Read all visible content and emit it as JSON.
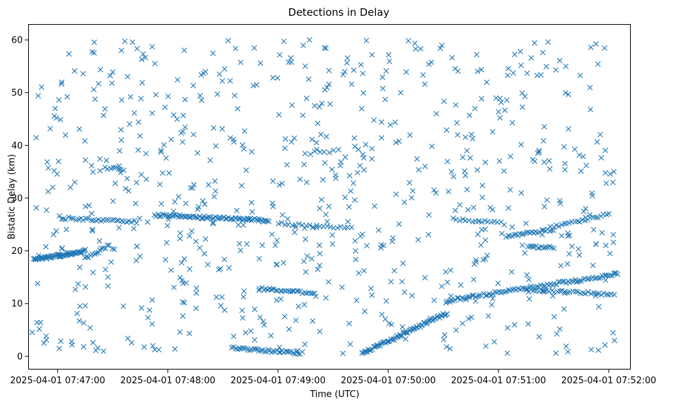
{
  "chart_data": {
    "type": "scatter",
    "title": "Detections in Delay",
    "xlabel": "Time (UTC)",
    "ylabel": "Bistatic Delay (km)",
    "marker": "x",
    "color": "#1f77b4",
    "grid": false,
    "x_unit": "seconds after 2025-04-01 07:47:00",
    "xlim": [
      -16,
      312
    ],
    "ylim": [
      -2.5,
      63
    ],
    "x_ticks": [
      {
        "value": 0,
        "label": "2025-04-01 07:47:00"
      },
      {
        "value": 60,
        "label": "2025-04-01 07:48:00"
      },
      {
        "value": 120,
        "label": "2025-04-01 07:49:00"
      },
      {
        "value": 180,
        "label": "2025-04-01 07:50:00"
      },
      {
        "value": 240,
        "label": "2025-04-01 07:51:00"
      },
      {
        "value": 300,
        "label": "2025-04-01 07:52:00"
      }
    ],
    "y_ticks": [
      {
        "value": 0,
        "label": "0"
      },
      {
        "value": 10,
        "label": "10"
      },
      {
        "value": 20,
        "label": "20"
      },
      {
        "value": 30,
        "label": "30"
      },
      {
        "value": 40,
        "label": "40"
      },
      {
        "value": 50,
        "label": "50"
      },
      {
        "value": 60,
        "label": "60"
      }
    ],
    "tracks": [
      {
        "t0": -13,
        "t1": 15,
        "y0": 18.3,
        "y1": 20.0,
        "n": 60
      },
      {
        "t0": 15,
        "t1": 28,
        "y0": 18.5,
        "y1": 21.0,
        "n": 14
      },
      {
        "t0": 3,
        "t1": 43,
        "y0": 26.2,
        "y1": 25.5,
        "n": 30
      },
      {
        "t0": 53,
        "t1": 115,
        "y0": 26.8,
        "y1": 25.8,
        "n": 75
      },
      {
        "t0": 95,
        "t1": 133,
        "y0": 1.6,
        "y1": 0.6,
        "n": 40
      },
      {
        "t0": 110,
        "t1": 140,
        "y0": 12.8,
        "y1": 12.0,
        "n": 28
      },
      {
        "t0": 120,
        "t1": 160,
        "y0": 25.2,
        "y1": 24.2,
        "n": 22
      },
      {
        "t0": 166,
        "t1": 212,
        "y0": 0.6,
        "y1": 8.2,
        "n": 70
      },
      {
        "t0": 212,
        "t1": 305,
        "y0": 10.6,
        "y1": 15.6,
        "n": 90
      },
      {
        "t0": 244,
        "t1": 270,
        "y0": 22.8,
        "y1": 24.0,
        "n": 25
      },
      {
        "t0": 255,
        "t1": 303,
        "y0": 12.5,
        "y1": 11.8,
        "n": 35
      },
      {
        "t0": 270,
        "t1": 300,
        "y0": 24.5,
        "y1": 27.0,
        "n": 22
      },
      {
        "t0": 256,
        "t1": 270,
        "y0": 20.8,
        "y1": 20.6,
        "n": 14
      },
      {
        "t0": 26,
        "t1": 36,
        "y0": 35.8,
        "y1": 35.5,
        "n": 8
      },
      {
        "t0": 217,
        "t1": 243,
        "y0": 26.0,
        "y1": 25.2,
        "n": 16
      },
      {
        "t0": 135,
        "t1": 153,
        "y0": 38.5,
        "y1": 39.0,
        "n": 8
      }
    ],
    "clutter": {
      "t0": -14,
      "t1": 304,
      "y0": 0.5,
      "y1": 60,
      "n": 720,
      "seed": 20250401
    }
  }
}
